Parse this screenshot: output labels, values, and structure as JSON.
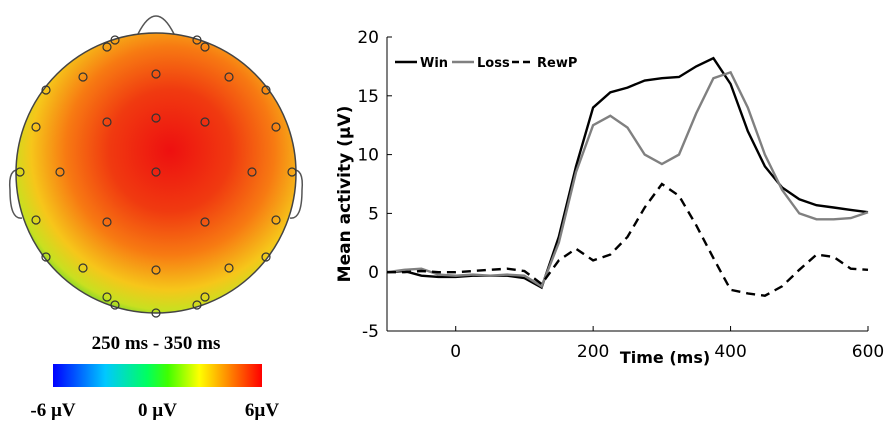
{
  "chart_data": [
    {
      "type": "topomap",
      "title": "250 ms - 350 ms",
      "clim": [
        -6,
        6
      ],
      "cticks": [
        {
          "value": -6,
          "label": "-6 µV"
        },
        {
          "value": 0,
          "label": "0 µV"
        },
        {
          "value": 6,
          "label": "6µV"
        }
      ]
    },
    {
      "type": "line",
      "xlabel": "Time (ms)",
      "ylabel": "Mean activity (µV)",
      "x": [
        -100,
        -75,
        -50,
        -25,
        0,
        25,
        50,
        75,
        100,
        125,
        150,
        175,
        200,
        225,
        250,
        275,
        300,
        325,
        350,
        375,
        400,
        425,
        450,
        475,
        500,
        525,
        550,
        575,
        600
      ],
      "series": [
        {
          "name": "Win",
          "color": "#000000",
          "dash": false,
          "values": [
            0,
            0.1,
            -0.3,
            -0.4,
            -0.4,
            -0.3,
            -0.3,
            -0.3,
            -0.5,
            -1.3,
            3,
            9,
            14,
            15.3,
            15.7,
            16.3,
            16.5,
            16.6,
            17.5,
            18.2,
            16,
            12,
            9,
            7.2,
            6.2,
            5.7,
            5.5,
            5.3,
            5.1
          ]
        },
        {
          "name": "Loss",
          "color": "#808080",
          "dash": false,
          "values": [
            0,
            0.2,
            0.3,
            -0.2,
            -0.3,
            -0.2,
            -0.3,
            -0.2,
            -0.3,
            -1.2,
            2.5,
            8.5,
            12.5,
            13.3,
            12.3,
            10,
            9.2,
            10,
            13.5,
            16.5,
            17,
            14,
            10,
            7,
            5,
            4.5,
            4.5,
            4.6,
            5.1
          ]
        },
        {
          "name": "RewP",
          "color": "#000000",
          "dash": true,
          "values": [
            0,
            0,
            0.1,
            0,
            0,
            0.1,
            0.2,
            0.3,
            0.1,
            -1,
            1,
            2,
            1,
            1.5,
            3,
            5.5,
            7.5,
            6.5,
            4,
            1.2,
            -1.5,
            -1.8,
            -2,
            -1.2,
            0.2,
            1.5,
            1.3,
            0.3,
            0.2
          ]
        }
      ],
      "xlim": [
        -100,
        600
      ],
      "xticks": [
        0,
        200,
        400,
        600
      ],
      "ylim": [
        -5,
        20
      ],
      "yticks": [
        -5,
        0,
        5,
        10,
        15,
        20
      ],
      "legend": "top-left"
    }
  ]
}
